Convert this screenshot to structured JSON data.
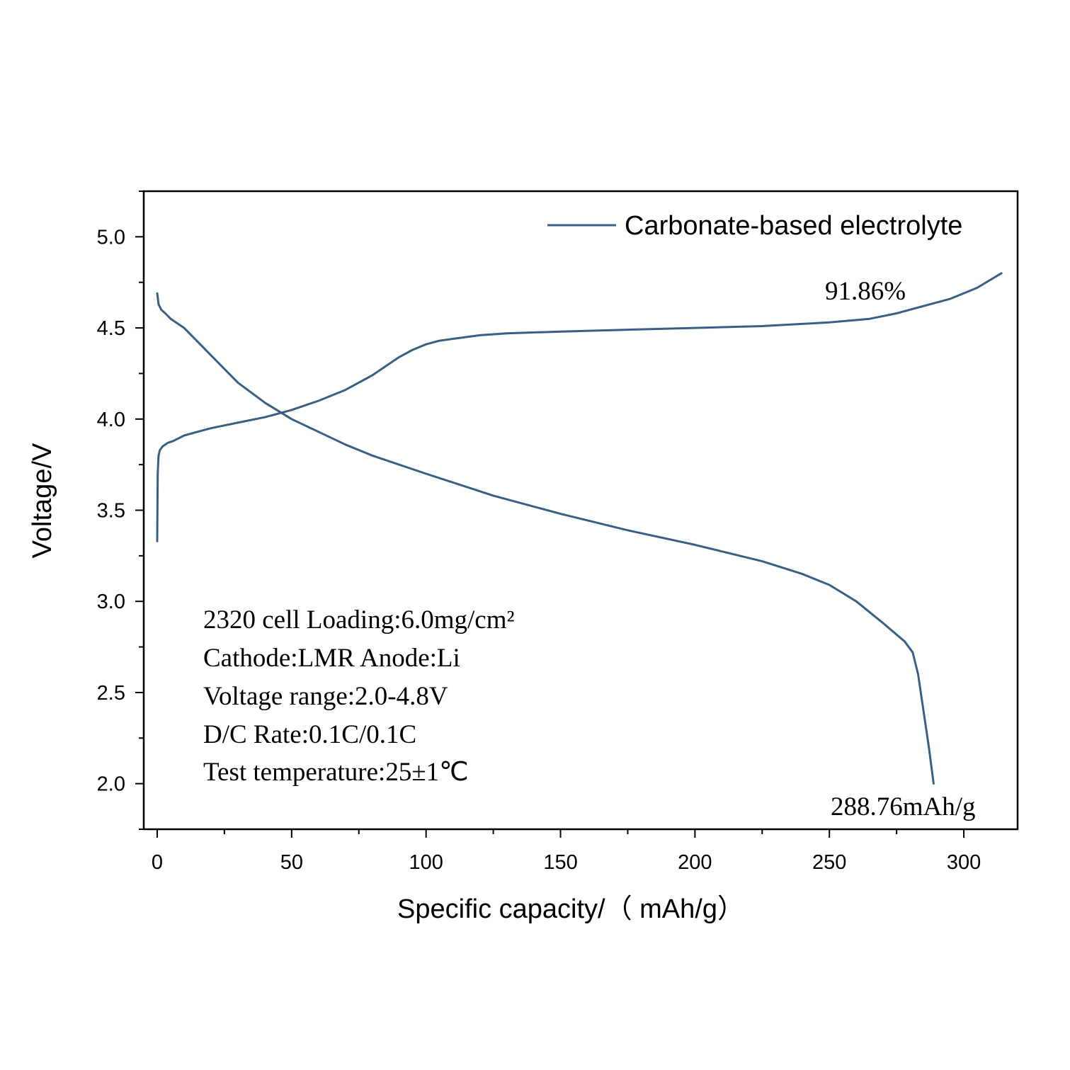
{
  "chart_data": {
    "type": "line",
    "xlabel": "Specific capacity/（ mAh/g）",
    "ylabel": "Voltage/V",
    "xlim": [
      -5,
      320
    ],
    "ylim": [
      1.75,
      5.25
    ],
    "x_ticks": [
      0,
      50,
      100,
      150,
      200,
      250,
      300
    ],
    "y_ticks": [
      2.0,
      2.5,
      3.0,
      3.5,
      4.0,
      4.5,
      5.0
    ],
    "grid": false,
    "legend_position": "top-right",
    "line_color": "#3a5f85",
    "series": [
      {
        "name": "Carbonate-based electrolyte",
        "segment": "charge",
        "x": [
          0,
          0.2,
          0.5,
          1,
          2,
          4,
          6,
          10,
          15,
          20,
          30,
          40,
          50,
          60,
          70,
          80,
          85,
          90,
          95,
          100,
          105,
          110,
          120,
          130,
          150,
          175,
          200,
          225,
          250,
          265,
          275,
          285,
          295,
          305,
          314
        ],
        "y": [
          3.33,
          3.7,
          3.8,
          3.83,
          3.85,
          3.87,
          3.88,
          3.91,
          3.93,
          3.95,
          3.98,
          4.01,
          4.05,
          4.1,
          4.16,
          4.24,
          4.29,
          4.34,
          4.38,
          4.41,
          4.43,
          4.44,
          4.46,
          4.47,
          4.48,
          4.49,
          4.5,
          4.51,
          4.53,
          4.55,
          4.58,
          4.62,
          4.66,
          4.72,
          4.8
        ]
      },
      {
        "name": "",
        "segment": "discharge",
        "x": [
          0,
          0.5,
          1.5,
          3,
          5,
          10,
          20,
          30,
          40,
          50,
          60,
          70,
          80,
          100,
          125,
          150,
          175,
          200,
          225,
          240,
          250,
          260,
          270,
          278,
          281,
          283,
          285,
          287,
          288.76
        ],
        "y": [
          4.69,
          4.63,
          4.6,
          4.58,
          4.55,
          4.5,
          4.35,
          4.2,
          4.09,
          4.0,
          3.93,
          3.86,
          3.8,
          3.7,
          3.58,
          3.48,
          3.39,
          3.31,
          3.22,
          3.15,
          3.09,
          3.0,
          2.88,
          2.78,
          2.72,
          2.6,
          2.4,
          2.2,
          2.0
        ]
      }
    ],
    "annotations": {
      "efficiency": "91.86%",
      "capacity": "288.76mAh/g",
      "conditions": [
        "2320  cell   Loading:6.0mg/cm²",
        "Cathode:LMR   Anode:Li",
        "Voltage range:2.0-4.8V",
        "D/C Rate:0.1C/0.1C",
        "Test temperature:25±1℃"
      ]
    }
  }
}
